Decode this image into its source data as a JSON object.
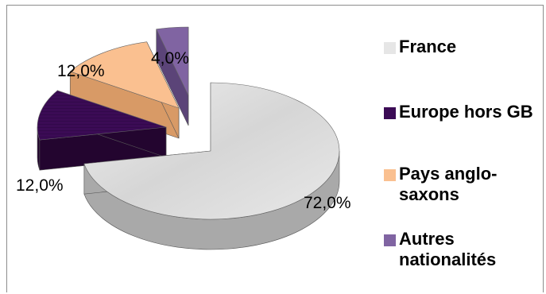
{
  "chart_data": {
    "type": "pie",
    "variant": "3d-exploded",
    "legend_position": "right",
    "slices": [
      {
        "name": "France",
        "value": 72.0,
        "label": "72,0%",
        "color": "#d9d9d9"
      },
      {
        "name": "Europe hors GB",
        "value": 12.0,
        "label": "12,0%",
        "color": "#3b0b55"
      },
      {
        "name": "Pays anglo-saxons",
        "value": 12.0,
        "label": "12,0%",
        "color": "#fac090"
      },
      {
        "name": "Autres nationalités",
        "value": 4.0,
        "label": "4,0%",
        "color": "#8064a2"
      }
    ]
  }
}
